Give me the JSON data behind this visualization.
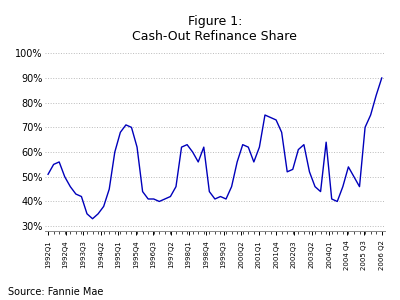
{
  "title": "Figure 1:\nCash-Out Refinance Share",
  "source": "Source: Fannie Mae",
  "line_color": "#0000BB",
  "background_color": "#ffffff",
  "grid_color": "#bbbbbb",
  "xlabels": [
    "1992Q1",
    "1992Q4",
    "1993Q3",
    "1994Q2",
    "1995Q1",
    "1995Q4",
    "1996Q3",
    "1997Q2",
    "1998Q1",
    "1998Q4",
    "1999Q3",
    "2000Q2",
    "2001Q1",
    "2001Q4",
    "2002Q3",
    "2003Q2",
    "2004Q1",
    "2004 Q4",
    "2005 Q3",
    "2006 Q2"
  ],
  "ylim": [
    0.28,
    1.02
  ],
  "yticks": [
    0.3,
    0.4,
    0.5,
    0.6,
    0.7,
    0.8,
    0.9,
    1.0
  ],
  "values": [
    0.51,
    0.55,
    0.56,
    0.5,
    0.46,
    0.43,
    0.42,
    0.35,
    0.33,
    0.35,
    0.38,
    0.45,
    0.6,
    0.68,
    0.71,
    0.7,
    0.62,
    0.44,
    0.41,
    0.41,
    0.4,
    0.41,
    0.42,
    0.46,
    0.62,
    0.63,
    0.6,
    0.56,
    0.62,
    0.44,
    0.41,
    0.42,
    0.41,
    0.46,
    0.56,
    0.63,
    0.62,
    0.56,
    0.62,
    0.75,
    0.74,
    0.73,
    0.68,
    0.52,
    0.53,
    0.61,
    0.63,
    0.52,
    0.46,
    0.44,
    0.64,
    0.41,
    0.4,
    0.46,
    0.54,
    0.5,
    0.46,
    0.7,
    0.75,
    0.83,
    0.9
  ]
}
